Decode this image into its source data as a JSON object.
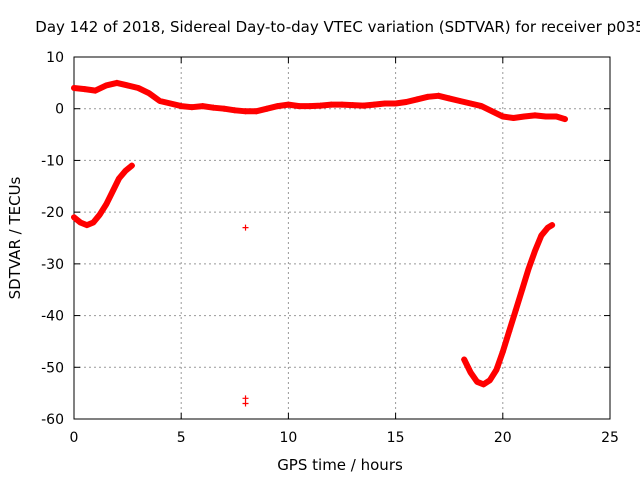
{
  "chart_data": {
    "type": "scatter",
    "title": "Day 142 of 2018, Sidereal Day-to-day VTEC variation (SDTVAR) for receiver p035",
    "xlabel": "GPS time / hours",
    "ylabel": "SDTVAR / TECUs",
    "xlim": [
      0,
      25
    ],
    "ylim": [
      -60,
      10
    ],
    "xticks": [
      0,
      5,
      10,
      15,
      20,
      25
    ],
    "yticks": [
      10,
      0,
      -10,
      -20,
      -30,
      -40,
      -50,
      -60
    ],
    "grid": true,
    "marker": "+",
    "color": "#ff0000",
    "series": [
      {
        "name": "upper band",
        "x": [
          0.0,
          0.5,
          1.0,
          1.5,
          2.0,
          2.5,
          3.0,
          3.5,
          4.0,
          4.5,
          5.0,
          5.5,
          6.0,
          6.5,
          7.0,
          7.5,
          8.0,
          8.5,
          9.0,
          9.5,
          10.0,
          10.5,
          11.0,
          11.5,
          12.0,
          12.5,
          13.0,
          13.5,
          14.0,
          14.5,
          15.0,
          15.5,
          16.0,
          16.5,
          17.0,
          17.5,
          18.0,
          18.5,
          19.0,
          19.5,
          20.0,
          20.5,
          21.0,
          21.5,
          22.0,
          22.5,
          22.9
        ],
        "y": [
          4,
          3.8,
          3.5,
          4.5,
          5,
          4.5,
          4,
          3,
          1.5,
          1,
          0.5,
          0.3,
          0.5,
          0.2,
          0,
          -0.3,
          -0.5,
          -0.5,
          0,
          0.5,
          0.8,
          0.5,
          0.5,
          0.6,
          0.8,
          0.8,
          0.7,
          0.6,
          0.8,
          1,
          1,
          1.3,
          1.8,
          2.3,
          2.5,
          2,
          1.5,
          1,
          0.5,
          -0.5,
          -1.5,
          -1.8,
          -1.5,
          -1.3,
          -1.5,
          -1.5,
          -2
        ]
      },
      {
        "name": "early arc",
        "x": [
          0.0,
          0.3,
          0.6,
          0.9,
          1.2,
          1.5,
          1.8,
          2.1,
          2.4,
          2.7
        ],
        "y": [
          -21,
          -22,
          -22.5,
          -22,
          -20.5,
          -18.5,
          -16,
          -13.5,
          -12,
          -11
        ]
      },
      {
        "name": "isolated points",
        "x": [
          8.0,
          8.0,
          8.0
        ],
        "y": [
          -23,
          -56,
          -57
        ]
      },
      {
        "name": "late arc",
        "x": [
          18.2,
          18.5,
          18.8,
          19.1,
          19.4,
          19.7,
          20.0,
          20.3,
          20.6,
          20.9,
          21.2,
          21.5,
          21.8,
          22.1,
          22.3
        ],
        "y": [
          -48.5,
          -51,
          -52.8,
          -53.3,
          -52.5,
          -50.5,
          -47,
          -43,
          -39,
          -35,
          -31,
          -27.5,
          -24.5,
          -23,
          -22.5
        ]
      }
    ]
  }
}
